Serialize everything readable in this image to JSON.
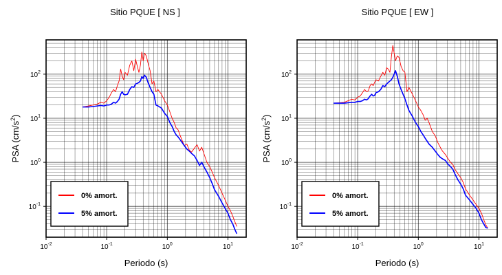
{
  "chart_data": [
    {
      "type": "line",
      "title": "Sitio PQUE [ NS ]",
      "xlabel": "Periodo (s)",
      "ylabel_prefix": "PSA (cm/s",
      "ylabel_sup": "2",
      "ylabel_suffix": ")",
      "xscale": "log",
      "yscale": "log",
      "xlim": [
        0.01,
        20
      ],
      "ylim": [
        0.02,
        600
      ],
      "grid": true,
      "legend_position": "bottom-left",
      "x_ticks": [
        {
          "base": "10",
          "exp": "-2"
        },
        {
          "base": "10",
          "exp": "-1"
        },
        {
          "base": "10",
          "exp": "0"
        },
        {
          "base": "10",
          "exp": "1"
        }
      ],
      "y_ticks": [
        {
          "base": "10",
          "exp": "-1"
        },
        {
          "base": "10",
          "exp": "0"
        },
        {
          "base": "10",
          "exp": "1"
        },
        {
          "base": "10",
          "exp": "2"
        }
      ],
      "series": [
        {
          "name": "0% amort.",
          "color": "#ff0000",
          "x": [
            0.04,
            0.05,
            0.06,
            0.07,
            0.08,
            0.09,
            0.1,
            0.11,
            0.12,
            0.13,
            0.14,
            0.15,
            0.16,
            0.17,
            0.18,
            0.19,
            0.2,
            0.22,
            0.24,
            0.26,
            0.28,
            0.3,
            0.32,
            0.34,
            0.36,
            0.38,
            0.4,
            0.42,
            0.45,
            0.48,
            0.52,
            0.56,
            0.6,
            0.65,
            0.7,
            0.8,
            0.9,
            1.0,
            1.1,
            1.2,
            1.3,
            1.4,
            1.5,
            1.7,
            1.9,
            2.1,
            2.3,
            2.5,
            2.8,
            3.1,
            3.4,
            3.7,
            4.0,
            4.5,
            5.0,
            5.5,
            6.0,
            7.0,
            8.0,
            9.0,
            10.0,
            11.0,
            12.0,
            13.0,
            14.0
          ],
          "y": [
            18,
            19,
            20,
            21,
            23,
            22,
            25,
            30,
            38,
            45,
            40,
            55,
            70,
            130,
            90,
            75,
            110,
            95,
            160,
            200,
            120,
            220,
            150,
            110,
            160,
            320,
            200,
            300,
            260,
            180,
            120,
            60,
            70,
            40,
            45,
            35,
            25,
            20,
            14,
            10,
            8,
            6,
            5.5,
            3.5,
            2.4,
            2.6,
            1.9,
            1.7,
            2.1,
            2.5,
            1.8,
            2.2,
            1.6,
            1.0,
            0.8,
            0.6,
            0.45,
            0.3,
            0.2,
            0.14,
            0.1,
            0.08,
            0.06,
            0.045,
            0.035
          ]
        },
        {
          "name": "5% amort.",
          "color": "#0000ff",
          "x": [
            0.04,
            0.05,
            0.06,
            0.07,
            0.08,
            0.09,
            0.1,
            0.11,
            0.12,
            0.13,
            0.14,
            0.15,
            0.16,
            0.17,
            0.18,
            0.19,
            0.2,
            0.22,
            0.24,
            0.26,
            0.28,
            0.3,
            0.32,
            0.34,
            0.36,
            0.38,
            0.4,
            0.42,
            0.45,
            0.48,
            0.52,
            0.56,
            0.6,
            0.65,
            0.7,
            0.8,
            0.9,
            1.0,
            1.1,
            1.2,
            1.3,
            1.4,
            1.5,
            1.7,
            1.9,
            2.1,
            2.3,
            2.5,
            2.8,
            3.1,
            3.4,
            3.7,
            4.0,
            4.5,
            5.0,
            5.5,
            6.0,
            7.0,
            8.0,
            9.0,
            10.0,
            11.0,
            12.0,
            13.0,
            14.0
          ],
          "y": [
            18,
            18,
            18.5,
            19,
            19.5,
            19,
            20,
            20,
            21,
            23,
            22,
            24,
            27,
            35,
            40,
            35,
            34,
            35,
            45,
            52,
            50,
            60,
            62,
            65,
            70,
            88,
            80,
            95,
            85,
            65,
            50,
            40,
            35,
            20,
            19,
            17,
            13,
            11,
            8,
            6.5,
            5,
            4.2,
            3.8,
            3,
            2.4,
            2,
            1.8,
            1.6,
            1.4,
            1.1,
            0.85,
            1.0,
            0.8,
            0.6,
            0.45,
            0.33,
            0.24,
            0.17,
            0.12,
            0.09,
            0.07,
            0.05,
            0.04,
            0.03,
            0.024
          ]
        }
      ]
    },
    {
      "type": "line",
      "title": "Sitio PQUE [ EW ]",
      "xlabel": "Periodo (s)",
      "ylabel_prefix": "PSA (cm/s",
      "ylabel_sup": "2",
      "ylabel_suffix": ")",
      "xscale": "log",
      "yscale": "log",
      "xlim": [
        0.01,
        20
      ],
      "ylim": [
        0.02,
        600
      ],
      "grid": true,
      "legend_position": "bottom-left",
      "x_ticks": [
        {
          "base": "10",
          "exp": "-2"
        },
        {
          "base": "10",
          "exp": "-1"
        },
        {
          "base": "10",
          "exp": "0"
        },
        {
          "base": "10",
          "exp": "1"
        }
      ],
      "y_ticks": [
        {
          "base": "10",
          "exp": "-1"
        },
        {
          "base": "10",
          "exp": "0"
        },
        {
          "base": "10",
          "exp": "1"
        },
        {
          "base": "10",
          "exp": "2"
        }
      ],
      "series": [
        {
          "name": "0% amort.",
          "color": "#ff0000",
          "x": [
            0.04,
            0.05,
            0.06,
            0.07,
            0.08,
            0.09,
            0.1,
            0.11,
            0.12,
            0.13,
            0.14,
            0.15,
            0.16,
            0.17,
            0.18,
            0.19,
            0.2,
            0.22,
            0.24,
            0.26,
            0.28,
            0.3,
            0.32,
            0.34,
            0.36,
            0.38,
            0.4,
            0.42,
            0.45,
            0.48,
            0.52,
            0.56,
            0.6,
            0.65,
            0.7,
            0.8,
            0.9,
            1.0,
            1.1,
            1.2,
            1.3,
            1.4,
            1.5,
            1.7,
            1.9,
            2.1,
            2.3,
            2.5,
            2.8,
            3.1,
            3.4,
            3.7,
            4.0,
            4.5,
            5.0,
            5.5,
            6.0,
            7.0,
            8.0,
            9.0,
            10.0,
            11.0,
            12.0,
            13.0,
            14.0
          ],
          "y": [
            22,
            22.5,
            23,
            25,
            27,
            26,
            30,
            32,
            38,
            45,
            40,
            42,
            55,
            60,
            55,
            65,
            75,
            70,
            90,
            110,
            95,
            140,
            130,
            110,
            250,
            450,
            300,
            200,
            260,
            240,
            150,
            120,
            110,
            40,
            50,
            35,
            25,
            18,
            15,
            12,
            9,
            10,
            8,
            5,
            4,
            2.8,
            2.2,
            1.8,
            1.5,
            1.2,
            1.0,
            0.9,
            0.7,
            0.55,
            0.45,
            0.35,
            0.25,
            0.18,
            0.14,
            0.11,
            0.09,
            0.07,
            0.05,
            0.038,
            0.032
          ]
        },
        {
          "name": "5% amort.",
          "color": "#0000ff",
          "x": [
            0.04,
            0.05,
            0.06,
            0.07,
            0.08,
            0.09,
            0.1,
            0.11,
            0.12,
            0.13,
            0.14,
            0.15,
            0.16,
            0.17,
            0.18,
            0.19,
            0.2,
            0.22,
            0.24,
            0.26,
            0.28,
            0.3,
            0.32,
            0.34,
            0.36,
            0.38,
            0.4,
            0.42,
            0.45,
            0.48,
            0.52,
            0.56,
            0.6,
            0.65,
            0.7,
            0.8,
            0.9,
            1.0,
            1.1,
            1.2,
            1.3,
            1.4,
            1.5,
            1.7,
            1.9,
            2.1,
            2.3,
            2.5,
            2.8,
            3.1,
            3.4,
            3.7,
            4.0,
            4.5,
            5.0,
            5.5,
            6.0,
            7.0,
            8.0,
            9.0,
            10.0,
            11.0,
            12.0,
            13.0,
            14.0
          ],
          "y": [
            22,
            22,
            22,
            22.5,
            23,
            23,
            24,
            24,
            25,
            27,
            26,
            28,
            32,
            35,
            32,
            33,
            38,
            40,
            45,
            55,
            52,
            60,
            65,
            70,
            75,
            85,
            100,
            120,
            90,
            60,
            45,
            35,
            28,
            20,
            15,
            11,
            8,
            6.5,
            5,
            4.2,
            3.5,
            3,
            2.6,
            2.2,
            1.8,
            1.5,
            1.3,
            1.2,
            1.1,
            0.9,
            0.8,
            0.7,
            0.55,
            0.4,
            0.32,
            0.25,
            0.18,
            0.14,
            0.11,
            0.09,
            0.07,
            0.05,
            0.04,
            0.033,
            0.032
          ]
        }
      ]
    }
  ]
}
